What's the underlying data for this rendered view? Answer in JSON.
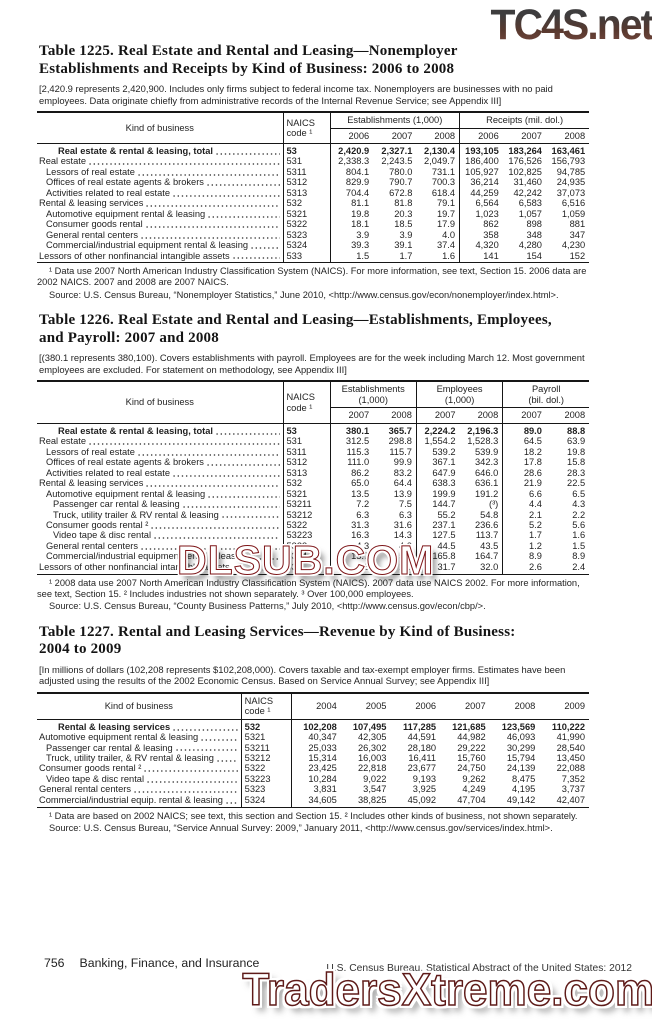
{
  "watermarks": {
    "top": "TC4S.net",
    "middle": "DLSUB.COM",
    "bottom": "TradersXtreme.com"
  },
  "footer": {
    "page_number": "756",
    "section_title": "Banking, Finance, and Insurance",
    "publication": "U.S. Census Bureau, Statistical Abstract of the United States: 2012"
  },
  "tables": [
    {
      "title": "Table 1225. Real Estate and Rental and Leasing—Nonemployer\nEstablishments and Receipts by Kind of Business: 2006 to 2008",
      "note": "[2,420.9 represents 2,420,900. Includes only firms subject to federal income tax. Nonemployers are businesses with no paid employees. Data originate chiefly from administrative records of the Internal Revenue Service; see Appendix III]",
      "header": {
        "kind": "Kind of business",
        "naics": "NAICS code ¹",
        "groups": [
          {
            "label": "Establishments (1,000)",
            "years": [
              "2006",
              "2007",
              "2008"
            ]
          },
          {
            "label": "Receipts (mil. dol.)",
            "years": [
              "2006",
              "2007",
              "2008"
            ]
          }
        ]
      },
      "rows": [
        {
          "label": "Real estate & rental & leasing, total",
          "naics": "53",
          "indent": 3,
          "bold": true,
          "values": [
            "2,420.9",
            "2,327.1",
            "2,130.4",
            "193,105",
            "183,264",
            "163,461"
          ]
        },
        {
          "label": "Real estate",
          "naics": "531",
          "indent": 0,
          "bold": false,
          "values": [
            "2,338.3",
            "2,243.5",
            "2,049.7",
            "186,400",
            "176,526",
            "156,793"
          ]
        },
        {
          "label": "Lessors of real estate",
          "naics": "5311",
          "indent": 1,
          "bold": false,
          "values": [
            "804.1",
            "780.0",
            "731.1",
            "105,927",
            "102,825",
            "94,785"
          ]
        },
        {
          "label": "Offices of real estate agents & brokers",
          "naics": "5312",
          "indent": 1,
          "bold": false,
          "values": [
            "829.9",
            "790.7",
            "700.3",
            "36,214",
            "31,460",
            "24,935"
          ]
        },
        {
          "label": "Activities related to real estate",
          "naics": "5313",
          "indent": 1,
          "bold": false,
          "values": [
            "704.4",
            "672.8",
            "618.4",
            "44,259",
            "42,242",
            "37,073"
          ]
        },
        {
          "label": "Rental & leasing services",
          "naics": "532",
          "indent": 0,
          "bold": false,
          "values": [
            "81.1",
            "81.8",
            "79.1",
            "6,564",
            "6,583",
            "6,516"
          ]
        },
        {
          "label": "Automotive equipment rental & leasing",
          "naics": "5321",
          "indent": 1,
          "bold": false,
          "values": [
            "19.8",
            "20.3",
            "19.7",
            "1,023",
            "1,057",
            "1,059"
          ]
        },
        {
          "label": "Consumer goods rental",
          "naics": "5322",
          "indent": 1,
          "bold": false,
          "values": [
            "18.1",
            "18.5",
            "17.9",
            "862",
            "898",
            "881"
          ]
        },
        {
          "label": "General rental centers",
          "naics": "5323",
          "indent": 1,
          "bold": false,
          "values": [
            "3.9",
            "3.9",
            "4.0",
            "358",
            "348",
            "347"
          ]
        },
        {
          "label": "Commercial/industrial equipment rental & leasing",
          "naics": "5324",
          "indent": 1,
          "bold": false,
          "values": [
            "39.3",
            "39.1",
            "37.4",
            "4,320",
            "4,280",
            "4,230"
          ]
        },
        {
          "label": "Lessors of other nonfinancial intangible assets",
          "naics": "533",
          "indent": 0,
          "bold": false,
          "values": [
            "1.5",
            "1.7",
            "1.6",
            "141",
            "154",
            "152"
          ]
        }
      ],
      "footnotes": [
        "¹ Data use 2007 North American Industry Classification System (NAICS). For more information, see text, Section 15. 2006 data are 2002 NAICS. 2007 and 2008 are 2007 NAICS.",
        "Source: U.S. Census Bureau, “Nonemployer Statistics,” June 2010, <http://www.census.gov/econ/nonemployer/index.html>."
      ]
    },
    {
      "title": "Table 1226. Real Estate and Rental and Leasing—Establishments, Employees,\nand Payroll: 2007 and 2008",
      "note": "[(380.1 represents 380,100). Covers establishments with payroll. Employees are for the week including March 12. Most government employees are excluded. For statement on methodology, see Appendix III]",
      "header": {
        "kind": "Kind of business",
        "naics": "NAICS code ¹",
        "groups": [
          {
            "label": "Establishments\n(1,000)",
            "years": [
              "2007",
              "2008"
            ]
          },
          {
            "label": "Employees\n(1,000)",
            "years": [
              "2007",
              "2008"
            ]
          },
          {
            "label": "Payroll\n(bil. dol.)",
            "years": [
              "2007",
              "2008"
            ]
          }
        ]
      },
      "rows": [
        {
          "label": "Real estate & rental & leasing, total",
          "naics": "53",
          "indent": 3,
          "bold": true,
          "values": [
            "380.1",
            "365.7",
            "2,224.2",
            "2,196.3",
            "89.0",
            "88.8"
          ]
        },
        {
          "label": "Real estate",
          "naics": "531",
          "indent": 0,
          "bold": false,
          "values": [
            "312.5",
            "298.8",
            "1,554.2",
            "1,528.3",
            "64.5",
            "63.9"
          ]
        },
        {
          "label": "Lessors of real estate",
          "naics": "5311",
          "indent": 1,
          "bold": false,
          "values": [
            "115.3",
            "115.7",
            "539.2",
            "539.9",
            "18.2",
            "19.8"
          ]
        },
        {
          "label": "Offices of real estate agents & brokers",
          "naics": "5312",
          "indent": 1,
          "bold": false,
          "values": [
            "111.0",
            "99.9",
            "367.1",
            "342.3",
            "17.8",
            "15.8"
          ]
        },
        {
          "label": "Activities related to real estate",
          "naics": "5313",
          "indent": 1,
          "bold": false,
          "values": [
            "86.2",
            "83.2",
            "647.9",
            "646.0",
            "28.6",
            "28.3"
          ]
        },
        {
          "label": "Rental & leasing services",
          "naics": "532",
          "indent": 0,
          "bold": false,
          "values": [
            "65.0",
            "64.4",
            "638.3",
            "636.1",
            "21.9",
            "22.5"
          ]
        },
        {
          "label": "Automotive equipment rental & leasing",
          "naics": "5321",
          "indent": 1,
          "bold": false,
          "values": [
            "13.5",
            "13.9",
            "199.9",
            "191.2",
            "6.6",
            "6.5"
          ]
        },
        {
          "label": "Passenger car rental & leasing",
          "naics": "53211",
          "indent": 2,
          "bold": false,
          "values": [
            "7.2",
            "7.5",
            "144.7",
            "(³)",
            "4.4",
            "4.3"
          ]
        },
        {
          "label": "Truck, utility trailer & RV rental & leasing",
          "naics": "53212",
          "indent": 2,
          "bold": false,
          "values": [
            "6.3",
            "6.3",
            "55.2",
            "54.8",
            "2.1",
            "2.2"
          ]
        },
        {
          "label": "Consumer goods rental ²",
          "naics": "5322",
          "indent": 1,
          "bold": false,
          "values": [
            "31.3",
            "31.6",
            "237.1",
            "236.6",
            "5.2",
            "5.6"
          ]
        },
        {
          "label": "Video tape & disc rental",
          "naics": "53223",
          "indent": 2,
          "bold": false,
          "values": [
            "16.3",
            "14.3",
            "127.5",
            "113.7",
            "1.7",
            "1.6"
          ]
        },
        {
          "label": "General rental centers",
          "naics": "5323",
          "indent": 1,
          "bold": false,
          "values": [
            "4.3",
            "4.2",
            "44.5",
            "43.5",
            "1.2",
            "1.5"
          ]
        },
        {
          "label": "Commercial/industrial equipment rental & leasing",
          "naics": "5324",
          "indent": 1,
          "bold": false,
          "values": [
            "15.7",
            "15.6",
            "165.8",
            "164.7",
            "8.9",
            "8.9"
          ]
        },
        {
          "label": "Lessors of other nonfinancial intangible assets",
          "naics": "533",
          "indent": 0,
          "bold": false,
          "values": [
            "2.6",
            "2.5",
            "31.7",
            "32.0",
            "2.6",
            "2.4"
          ]
        }
      ],
      "footnotes": [
        "¹ 2008 data use 2007 North American Industry Classification System (NAICS). 2007 data use NAICS 2002. For more information, see text, Section 15. ² Includes industries not shown separately. ³ Over 100,000 employees.",
        "Source: U.S. Census Bureau, “County Business Patterns,” July 2010, <http://www.census.gov/econ/cbp/>."
      ]
    },
    {
      "title": "Table 1227. Rental and Leasing Services—Revenue by Kind of Business:\n2004 to 2009",
      "note": "[In millions of dollars (102,208 represents $102,208,000). Covers taxable and tax-exempt employer firms. Estimates have been adjusted using the results of the 2002 Economic Census. Based on Service Annual Survey; see Appendix III]",
      "header": {
        "kind": "Kind of business",
        "naics": "NAICS code ¹",
        "groups": [
          {
            "label": "",
            "years": [
              "2004",
              "2005",
              "2006",
              "2007",
              "2008",
              "2009"
            ]
          }
        ]
      },
      "rows": [
        {
          "label": "Rental & leasing services",
          "naics": "532",
          "indent": 3,
          "bold": true,
          "values": [
            "102,208",
            "107,495",
            "117,285",
            "121,685",
            "123,569",
            "110,222"
          ]
        },
        {
          "label": "Automotive equipment rental & leasing",
          "naics": "5321",
          "indent": 0,
          "bold": false,
          "values": [
            "40,347",
            "42,305",
            "44,591",
            "44,982",
            "46,093",
            "41,990"
          ]
        },
        {
          "label": "Passenger car rental & leasing",
          "naics": "53211",
          "indent": 1,
          "bold": false,
          "values": [
            "25,033",
            "26,302",
            "28,180",
            "29,222",
            "30,299",
            "28,540"
          ]
        },
        {
          "label": "Truck, utility trailer, & RV rental & leasing",
          "naics": "53212",
          "indent": 1,
          "bold": false,
          "values": [
            "15,314",
            "16,003",
            "16,411",
            "15,760",
            "15,794",
            "13,450"
          ]
        },
        {
          "label": "Consumer goods rental ²",
          "naics": "5322",
          "indent": 0,
          "bold": false,
          "values": [
            "23,425",
            "22,818",
            "23,677",
            "24,750",
            "24,139",
            "22,088"
          ]
        },
        {
          "label": "Video tape & disc rental",
          "naics": "53223",
          "indent": 1,
          "bold": false,
          "values": [
            "10,284",
            "9,022",
            "9,193",
            "9,262",
            "8,475",
            "7,352"
          ]
        },
        {
          "label": "General rental centers",
          "naics": "5323",
          "indent": 0,
          "bold": false,
          "values": [
            "3,831",
            "3,547",
            "3,925",
            "4,249",
            "4,195",
            "3,737"
          ]
        },
        {
          "label": "Commercial/industrial equip. rental & leasing",
          "naics": "5324",
          "indent": 0,
          "bold": false,
          "values": [
            "34,605",
            "38,825",
            "45,092",
            "47,704",
            "49,142",
            "42,407"
          ]
        }
      ],
      "footnotes": [
        "¹ Data are based on 2002 NAICS; see text, this section and Section 15. ² Includes other kinds of business, not shown separately.",
        "Source: U.S. Census Bureau, “Service Annual Survey: 2009,” January 2011, <http://www.census.gov/services/index.html>."
      ]
    }
  ]
}
